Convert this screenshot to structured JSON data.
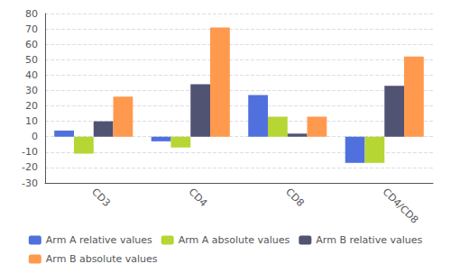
{
  "chart_data": {
    "type": "bar",
    "categories": [
      "CD3",
      "CD4",
      "CD8",
      "CD4/CD8"
    ],
    "series": [
      {
        "name": "Arm A relative values",
        "values": [
          4,
          -3,
          27,
          -17
        ]
      },
      {
        "name": "Arm A absolute values",
        "values": [
          -11,
          -7,
          13,
          -17
        ]
      },
      {
        "name": "Arm B relative values",
        "values": [
          10,
          34,
          2,
          33
        ]
      },
      {
        "name": "Arm B absolute values",
        "values": [
          26,
          71,
          13,
          52
        ]
      }
    ],
    "ylim": [
      -30,
      80
    ],
    "yticks": [
      -30,
      -20,
      -10,
      0,
      10,
      20,
      30,
      40,
      50,
      60,
      70,
      80
    ],
    "grid": true,
    "legend": "bottom"
  }
}
